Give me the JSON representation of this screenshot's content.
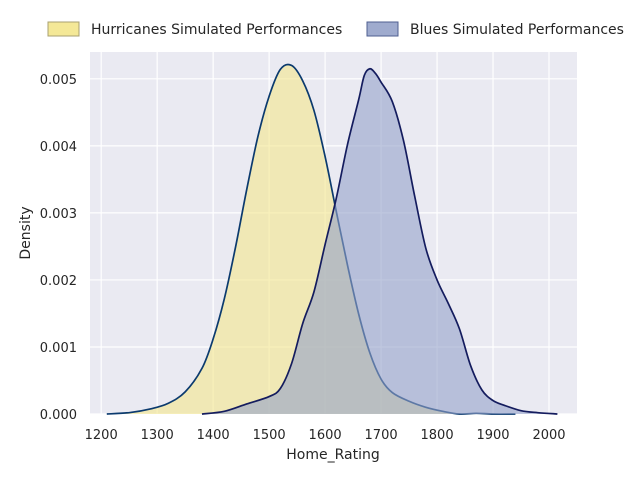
{
  "chart_data": {
    "type": "area",
    "title": "",
    "xlabel": "Home_Rating",
    "ylabel": "Density",
    "xlim": [
      1180,
      2050
    ],
    "ylim": [
      0,
      0.0054
    ],
    "x_ticks": [
      1200,
      1300,
      1400,
      1500,
      1600,
      1700,
      1800,
      1900,
      2000
    ],
    "y_ticks": [
      0.0,
      0.001,
      0.002,
      0.003,
      0.004,
      0.005
    ],
    "x_tick_labels": [
      "1200",
      "1300",
      "1400",
      "1500",
      "1600",
      "1700",
      "1800",
      "1900",
      "2000"
    ],
    "y_tick_labels": [
      "0.000",
      "0.001",
      "0.002",
      "0.003",
      "0.004",
      "0.005"
    ],
    "grid": true,
    "legend_position": "top",
    "series": [
      {
        "name": "Hurricanes Simulated Performances",
        "fill_color": "#f3e68c",
        "line_color": "#0b3a6e",
        "x": [
          1210,
          1250,
          1290,
          1320,
          1350,
          1380,
          1400,
          1420,
          1440,
          1460,
          1480,
          1500,
          1520,
          1540,
          1560,
          1580,
          1600,
          1620,
          1640,
          1660,
          1680,
          1700,
          1720,
          1750,
          1780,
          1810,
          1840,
          1870,
          1900,
          1940
        ],
        "y": [
          0.0,
          2e-05,
          8e-05,
          0.00016,
          0.00033,
          0.00068,
          0.00112,
          0.00172,
          0.00249,
          0.00335,
          0.00414,
          0.00474,
          0.00514,
          0.0052,
          0.00497,
          0.00453,
          0.00384,
          0.00302,
          0.00222,
          0.00149,
          0.00091,
          0.00052,
          0.00032,
          0.00019,
          0.0001,
          4e-05,
          0.0,
          1e-05,
          0.0,
          0.0
        ]
      },
      {
        "name": "Blues Simulated Performances",
        "fill_color": "#95a2c9",
        "line_color": "#141c5e",
        "x": [
          1380,
          1420,
          1460,
          1500,
          1520,
          1540,
          1560,
          1580,
          1600,
          1620,
          1640,
          1660,
          1670,
          1680,
          1690,
          1700,
          1720,
          1740,
          1760,
          1780,
          1800,
          1820,
          1840,
          1860,
          1880,
          1900,
          1920,
          1950,
          1980,
          2015
        ],
        "y": [
          0.0,
          4e-05,
          0.00015,
          0.00026,
          0.00038,
          0.00075,
          0.00135,
          0.00182,
          0.00253,
          0.00322,
          0.00402,
          0.00469,
          0.00505,
          0.00515,
          0.00508,
          0.00495,
          0.00466,
          0.00408,
          0.00325,
          0.00247,
          0.002,
          0.00165,
          0.00127,
          0.00072,
          0.00036,
          0.0002,
          0.00013,
          5e-05,
          2e-05,
          0.0
        ]
      }
    ]
  }
}
